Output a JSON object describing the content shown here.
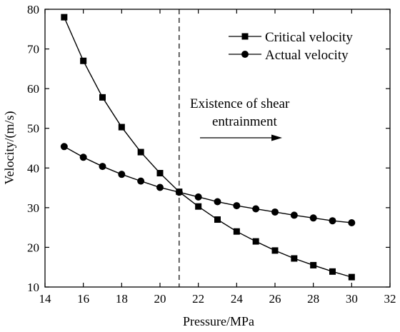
{
  "chart_data": {
    "type": "line",
    "title": "",
    "xlabel": "Pressure/MPa",
    "ylabel": "Velocity/(m/s)",
    "xlim": [
      14,
      32
    ],
    "ylim": [
      10,
      80
    ],
    "xticks": [
      14,
      16,
      18,
      20,
      22,
      24,
      26,
      28,
      30,
      32
    ],
    "yticks": [
      10,
      20,
      30,
      40,
      50,
      60,
      70,
      80
    ],
    "grid": false,
    "legend_position": "top-right",
    "series": [
      {
        "name": "Critical velocity",
        "marker": "square",
        "color": "#000000",
        "x": [
          15,
          16,
          17,
          18,
          19,
          20,
          21,
          22,
          23,
          24,
          25,
          26,
          27,
          28,
          29,
          30
        ],
        "y": [
          78.0,
          67.0,
          57.8,
          50.3,
          44.0,
          38.7,
          34.0,
          30.3,
          27.0,
          24.0,
          21.5,
          19.2,
          17.2,
          15.5,
          13.9,
          12.5
        ]
      },
      {
        "name": "Actual velocity",
        "marker": "circle",
        "color": "#000000",
        "x": [
          15,
          16,
          17,
          18,
          19,
          20,
          21,
          22,
          23,
          24,
          25,
          26,
          27,
          28,
          29,
          30
        ],
        "y": [
          45.4,
          42.7,
          40.4,
          38.4,
          36.7,
          35.1,
          33.9,
          32.7,
          31.5,
          30.5,
          29.7,
          28.9,
          28.1,
          27.4,
          26.7,
          26.2
        ]
      }
    ],
    "reference_line": {
      "x": 21,
      "style": "dashed"
    },
    "annotations": {
      "line1": "Existence of shear",
      "line2": "entrainment",
      "arrow": "right"
    }
  }
}
